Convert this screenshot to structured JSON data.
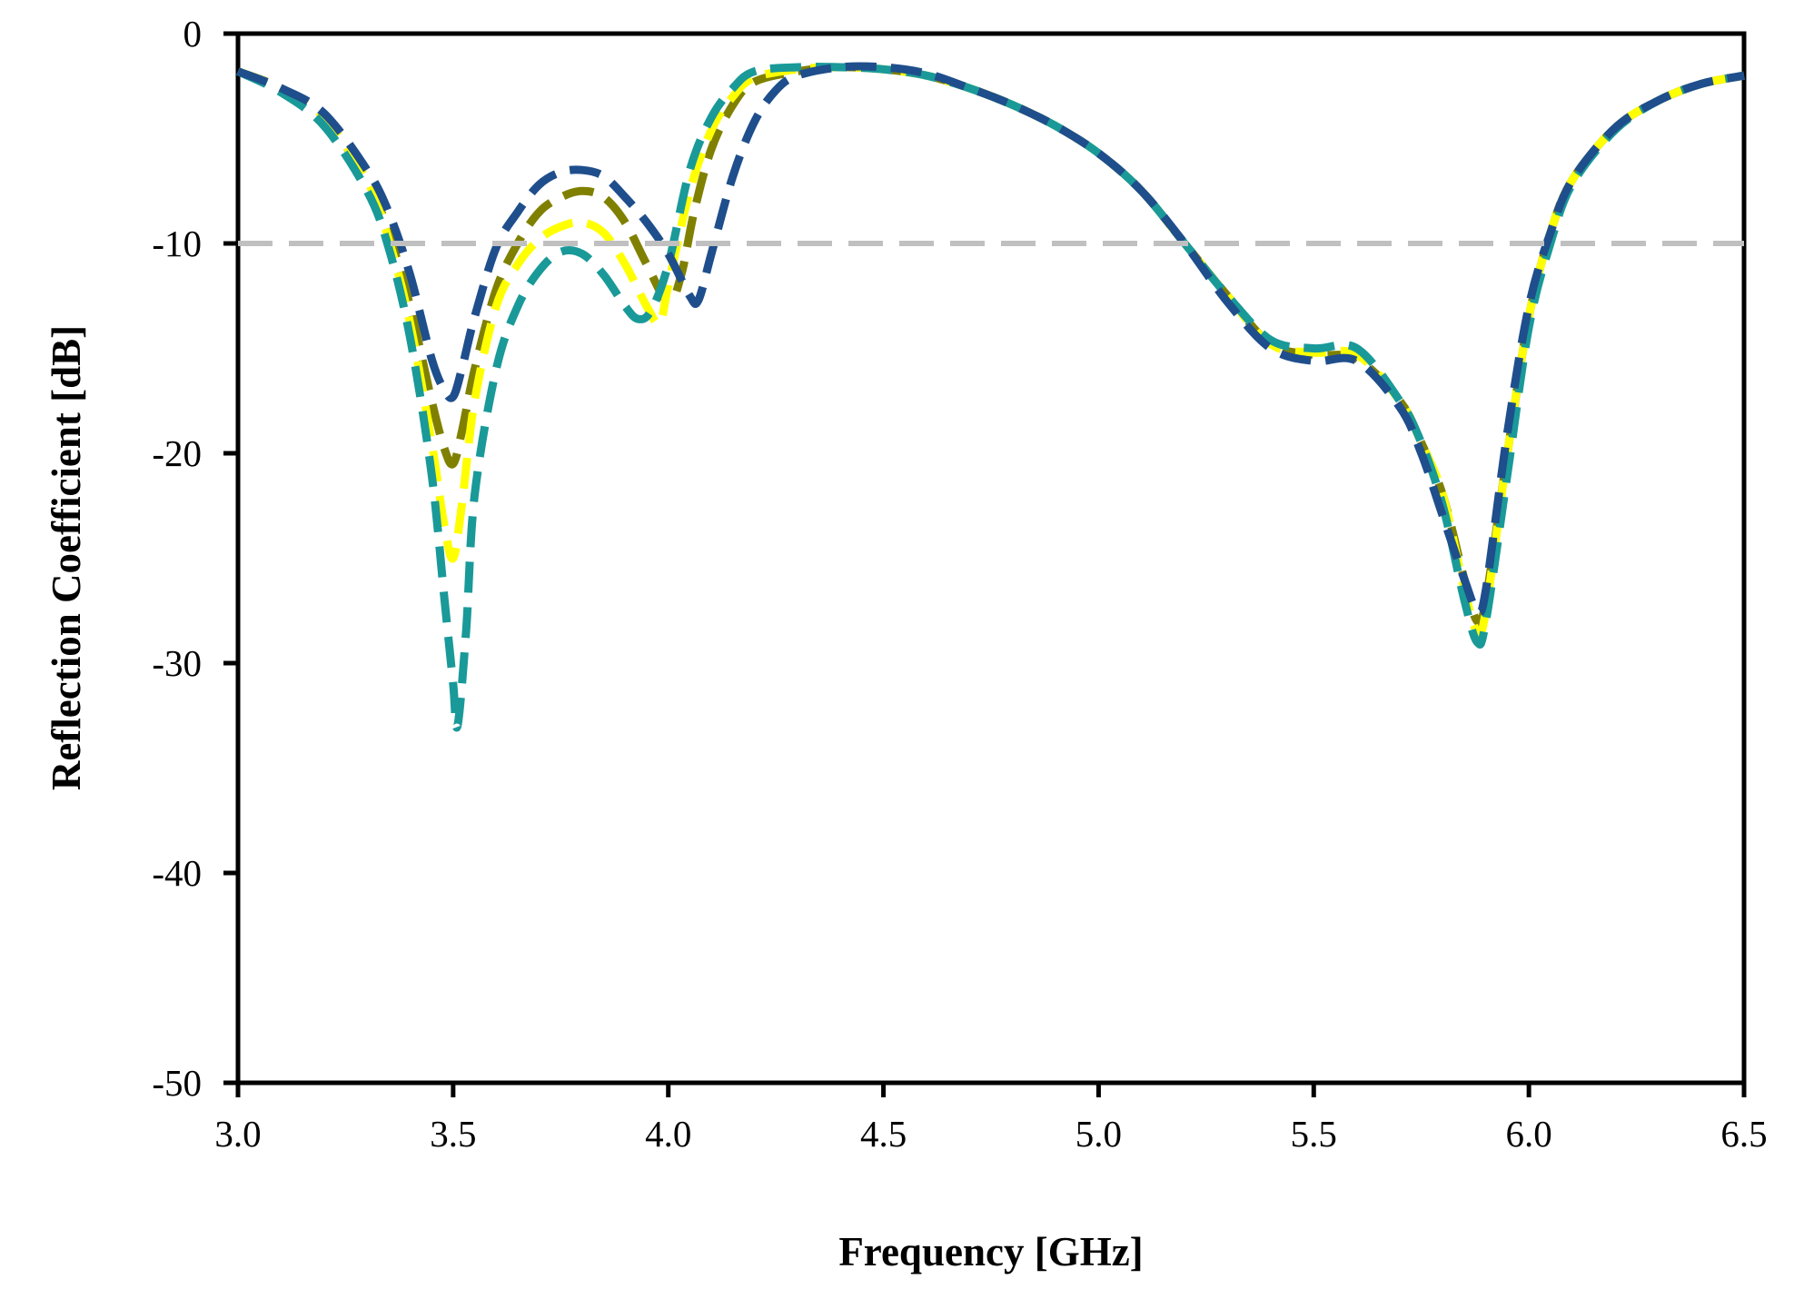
{
  "chart_data": {
    "type": "line",
    "title": "",
    "xlabel": "Frequency [GHz]",
    "ylabel": "Reflection Coefficient [dB]",
    "xlim": [
      3.0,
      6.5
    ],
    "ylim": [
      -50,
      0
    ],
    "xticks": [
      3.0,
      3.5,
      4.0,
      4.5,
      5.0,
      5.5,
      6.0,
      6.5
    ],
    "xtick_labels": [
      "3.0",
      "3.5",
      "4.0",
      "4.5",
      "5.0",
      "5.5",
      "6.0",
      "6.5"
    ],
    "yticks": [
      0,
      -10,
      -20,
      -30,
      -40,
      -50
    ],
    "ytick_labels": [
      "0",
      "-10",
      "-20",
      "-30",
      "-40",
      "-50"
    ],
    "grid": false,
    "legend": "none",
    "reference_line": {
      "y": -10,
      "color": "#c0c0c0",
      "style": "dashed"
    },
    "series": [
      {
        "color": "#808000",
        "style": "dashed",
        "x": [
          3.0,
          3.1,
          3.2,
          3.3,
          3.35,
          3.4,
          3.45,
          3.48,
          3.5,
          3.52,
          3.55,
          3.6,
          3.65,
          3.7,
          3.75,
          3.8,
          3.85,
          3.9,
          3.95,
          4.0,
          4.03,
          4.06,
          4.1,
          4.15,
          4.2,
          4.3,
          4.4,
          4.5,
          4.6,
          4.7,
          4.8,
          4.9,
          5.0,
          5.1,
          5.2,
          5.3,
          5.4,
          5.5,
          5.6,
          5.7,
          5.75,
          5.8,
          5.85,
          5.88,
          5.9,
          5.95,
          6.0,
          6.05,
          6.1,
          6.2,
          6.3,
          6.4,
          6.5
        ],
        "y": [
          -1.8,
          -2.6,
          -4.0,
          -7.0,
          -9.5,
          -13.0,
          -17.5,
          -19.8,
          -20.5,
          -19.0,
          -16.0,
          -12.2,
          -10.0,
          -8.5,
          -7.8,
          -7.5,
          -7.8,
          -9.0,
          -11.0,
          -12.8,
          -11.5,
          -8.5,
          -5.5,
          -3.4,
          -2.3,
          -1.8,
          -1.6,
          -1.7,
          -2.0,
          -2.6,
          -3.4,
          -4.4,
          -5.7,
          -7.5,
          -10.0,
          -12.5,
          -14.8,
          -15.3,
          -15.5,
          -17.5,
          -19.5,
          -22.0,
          -26.0,
          -28.0,
          -27.0,
          -20.0,
          -13.5,
          -9.5,
          -7.0,
          -4.5,
          -3.2,
          -2.4,
          -2.0
        ]
      },
      {
        "color": "#ffff00",
        "style": "dashed",
        "x": [
          3.0,
          3.1,
          3.2,
          3.3,
          3.35,
          3.4,
          3.45,
          3.48,
          3.5,
          3.52,
          3.55,
          3.6,
          3.65,
          3.7,
          3.75,
          3.8,
          3.85,
          3.9,
          3.95,
          3.98,
          4.0,
          4.05,
          4.1,
          4.15,
          4.2,
          4.3,
          4.4,
          4.5,
          4.6,
          4.7,
          4.8,
          4.9,
          5.0,
          5.1,
          5.2,
          5.3,
          5.4,
          5.5,
          5.6,
          5.7,
          5.75,
          5.8,
          5.85,
          5.88,
          5.9,
          5.95,
          6.0,
          6.05,
          6.1,
          6.2,
          6.3,
          6.4,
          6.5
        ],
        "y": [
          -1.8,
          -2.6,
          -4.0,
          -7.0,
          -9.8,
          -13.8,
          -19.5,
          -23.5,
          -25.0,
          -22.5,
          -17.5,
          -13.0,
          -11.0,
          -9.8,
          -9.2,
          -9.0,
          -9.5,
          -11.0,
          -13.0,
          -13.8,
          -12.0,
          -7.5,
          -4.6,
          -3.0,
          -2.1,
          -1.7,
          -1.6,
          -1.7,
          -2.0,
          -2.6,
          -3.4,
          -4.4,
          -5.7,
          -7.5,
          -10.0,
          -12.5,
          -14.8,
          -15.2,
          -15.3,
          -17.5,
          -19.5,
          -22.0,
          -26.5,
          -28.5,
          -27.5,
          -20.0,
          -13.5,
          -9.5,
          -7.0,
          -4.5,
          -3.2,
          -2.4,
          -2.0
        ]
      },
      {
        "color": "#1a9999",
        "style": "dashed",
        "x": [
          3.0,
          3.1,
          3.2,
          3.3,
          3.35,
          3.4,
          3.45,
          3.48,
          3.5,
          3.51,
          3.53,
          3.55,
          3.6,
          3.65,
          3.7,
          3.75,
          3.8,
          3.85,
          3.9,
          3.93,
          3.96,
          4.0,
          4.05,
          4.1,
          4.15,
          4.2,
          4.3,
          4.4,
          4.5,
          4.6,
          4.7,
          4.8,
          4.9,
          5.0,
          5.1,
          5.2,
          5.3,
          5.4,
          5.5,
          5.6,
          5.7,
          5.75,
          5.8,
          5.85,
          5.88,
          5.9,
          5.95,
          6.0,
          6.05,
          6.1,
          6.2,
          6.3,
          6.4,
          6.5
        ],
        "y": [
          -1.8,
          -2.8,
          -4.4,
          -7.5,
          -10.2,
          -14.5,
          -21.0,
          -27.0,
          -31.0,
          -33.0,
          -28.5,
          -22.0,
          -16.0,
          -13.0,
          -11.3,
          -10.4,
          -10.5,
          -11.5,
          -13.0,
          -13.6,
          -13.2,
          -11.0,
          -6.5,
          -4.0,
          -2.6,
          -1.8,
          -1.6,
          -1.6,
          -1.7,
          -2.0,
          -2.6,
          -3.4,
          -4.4,
          -5.7,
          -7.5,
          -10.0,
          -12.5,
          -14.6,
          -15.0,
          -15.0,
          -17.5,
          -19.5,
          -22.5,
          -27.0,
          -29.0,
          -28.0,
          -21.0,
          -14.0,
          -10.0,
          -7.2,
          -4.6,
          -3.2,
          -2.4,
          -2.0
        ]
      },
      {
        "color": "#1f4e8c",
        "style": "dashed",
        "x": [
          3.0,
          3.1,
          3.2,
          3.3,
          3.35,
          3.4,
          3.45,
          3.48,
          3.5,
          3.52,
          3.55,
          3.6,
          3.65,
          3.7,
          3.75,
          3.8,
          3.85,
          3.9,
          3.95,
          4.0,
          4.05,
          4.07,
          4.1,
          4.15,
          4.2,
          4.25,
          4.3,
          4.4,
          4.5,
          4.6,
          4.7,
          4.8,
          4.9,
          5.0,
          5.1,
          5.2,
          5.3,
          5.4,
          5.5,
          5.6,
          5.7,
          5.75,
          5.8,
          5.85,
          5.88,
          5.9,
          5.95,
          6.0,
          6.05,
          6.1,
          6.2,
          6.3,
          6.4,
          6.5
        ],
        "y": [
          -1.8,
          -2.6,
          -3.8,
          -6.5,
          -8.5,
          -11.5,
          -15.5,
          -17.0,
          -17.3,
          -16.0,
          -13.5,
          -10.2,
          -8.5,
          -7.2,
          -6.6,
          -6.5,
          -6.8,
          -7.8,
          -9.0,
          -10.5,
          -12.5,
          -12.7,
          -10.5,
          -6.8,
          -4.2,
          -2.7,
          -2.0,
          -1.6,
          -1.6,
          -1.9,
          -2.6,
          -3.4,
          -4.4,
          -5.7,
          -7.5,
          -10.0,
          -12.8,
          -15.0,
          -15.6,
          -15.6,
          -17.8,
          -20.0,
          -23.0,
          -26.0,
          -27.5,
          -26.5,
          -19.0,
          -13.0,
          -9.5,
          -7.0,
          -4.5,
          -3.2,
          -2.4,
          -2.0
        ]
      }
    ]
  }
}
